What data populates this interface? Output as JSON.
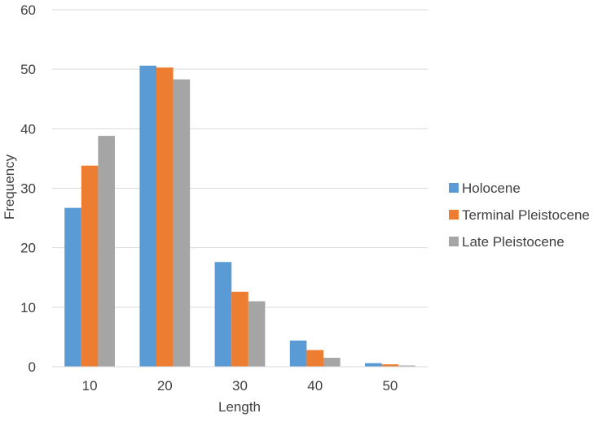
{
  "chart_data": {
    "type": "bar",
    "title": "",
    "xlabel": "Length",
    "ylabel": "Frequency",
    "categories": [
      "10",
      "20",
      "30",
      "40",
      "50"
    ],
    "ylim": [
      0,
      60
    ],
    "yticks": [
      "0",
      "10",
      "20",
      "30",
      "40",
      "50",
      "60"
    ],
    "grid": true,
    "legend_position": "right",
    "series": [
      {
        "name": "Holocene",
        "color": "#5b9bd5",
        "values": [
          26.7,
          50.6,
          17.6,
          4.4,
          0.6
        ]
      },
      {
        "name": "Terminal Pleistocene",
        "color": "#ed7d31",
        "values": [
          33.8,
          50.3,
          12.6,
          2.8,
          0.4
        ]
      },
      {
        "name": "Late Pleistocene",
        "color": "#a5a5a5",
        "values": [
          38.8,
          48.3,
          11.0,
          1.5,
          0.2
        ]
      }
    ]
  }
}
